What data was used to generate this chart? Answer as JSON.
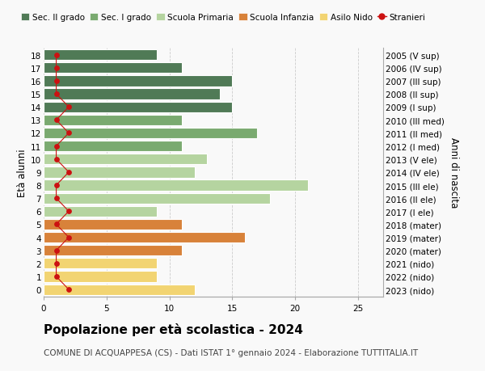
{
  "ages": [
    18,
    17,
    16,
    15,
    14,
    13,
    12,
    11,
    10,
    9,
    8,
    7,
    6,
    5,
    4,
    3,
    2,
    1,
    0
  ],
  "right_labels": [
    "2005 (V sup)",
    "2006 (IV sup)",
    "2007 (III sup)",
    "2008 (II sup)",
    "2009 (I sup)",
    "2010 (III med)",
    "2011 (II med)",
    "2012 (I med)",
    "2013 (V ele)",
    "2014 (IV ele)",
    "2015 (III ele)",
    "2016 (II ele)",
    "2017 (I ele)",
    "2018 (mater)",
    "2019 (mater)",
    "2020 (mater)",
    "2021 (nido)",
    "2022 (nido)",
    "2023 (nido)"
  ],
  "bar_values": [
    9,
    11,
    15,
    14,
    15,
    11,
    17,
    11,
    13,
    12,
    21,
    18,
    9,
    11,
    16,
    11,
    9,
    9,
    12
  ],
  "bar_colors": [
    "#507a56",
    "#507a56",
    "#507a56",
    "#507a56",
    "#507a56",
    "#7aaa70",
    "#7aaa70",
    "#7aaa70",
    "#b5d4a0",
    "#b5d4a0",
    "#b5d4a0",
    "#b5d4a0",
    "#b5d4a0",
    "#d8823a",
    "#d8823a",
    "#d8823a",
    "#f2d472",
    "#f2d472",
    "#f2d472"
  ],
  "stranieri_values": [
    1,
    1,
    1,
    1,
    2,
    1,
    2,
    1,
    1,
    2,
    1,
    1,
    2,
    1,
    2,
    1,
    1,
    1,
    2
  ],
  "legend_labels": [
    "Sec. II grado",
    "Sec. I grado",
    "Scuola Primaria",
    "Scuola Infanzia",
    "Asilo Nido",
    "Stranieri"
  ],
  "legend_colors": [
    "#507a56",
    "#7aaa70",
    "#b5d4a0",
    "#d8823a",
    "#f2d472",
    "#cc1111"
  ],
  "ylabel": "Età alunni",
  "ylabel_right": "Anni di nascita",
  "title": "Popolazione per età scolastica - 2024",
  "subtitle": "COMUNE DI ACQUAPPESA (CS) - Dati ISTAT 1° gennaio 2024 - Elaborazione TUTTITALIA.IT",
  "xlim": [
    0,
    27
  ],
  "xticks": [
    0,
    5,
    10,
    15,
    20,
    25
  ],
  "background_color": "#f9f9f9",
  "grid_color": "#cccccc",
  "bar_edgecolor": "white",
  "bar_linewidth": 0.8,
  "bar_height": 0.82,
  "stranieri_color": "#cc1111",
  "title_fontsize": 11,
  "subtitle_fontsize": 7.5,
  "ylabel_fontsize": 8.5,
  "tick_fontsize": 7.5,
  "legend_fontsize": 7.5
}
